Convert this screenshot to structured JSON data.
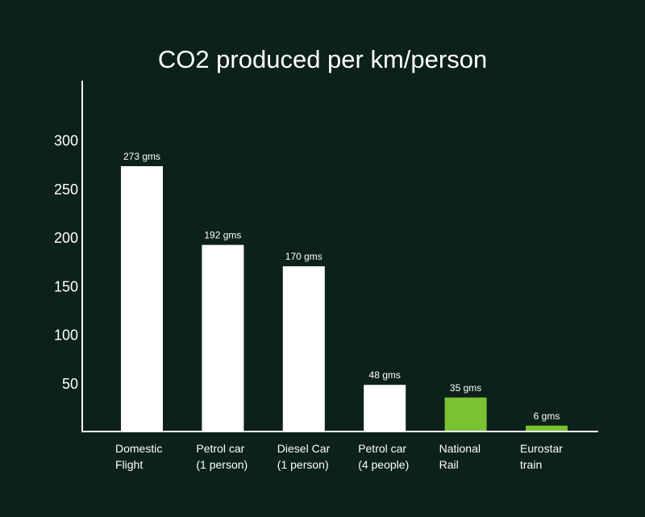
{
  "chart_data": {
    "type": "bar",
    "title": "CO2 produced per km/person",
    "xlabel": "",
    "ylabel": "",
    "ylim": [
      0,
      360
    ],
    "yticks": [
      50,
      100,
      150,
      200,
      250,
      300
    ],
    "grid": false,
    "categories": [
      [
        "Domestic",
        "Flight"
      ],
      [
        "Petrol car",
        "(1 person)"
      ],
      [
        "Diesel Car",
        "(1 person)"
      ],
      [
        "Petrol car",
        "(4 people)"
      ],
      [
        "National",
        "Rail"
      ],
      [
        "Eurostar",
        "train"
      ]
    ],
    "values": [
      273,
      192,
      170,
      48,
      35,
      6
    ],
    "data_labels": [
      "273 gms",
      "192 gms",
      "170 gms",
      "48 gms",
      "35 gms",
      "6 gms"
    ],
    "bar_colors": [
      "#ffffff",
      "#ffffff",
      "#ffffff",
      "#ffffff",
      "#7ac231",
      "#7ac231"
    ]
  }
}
